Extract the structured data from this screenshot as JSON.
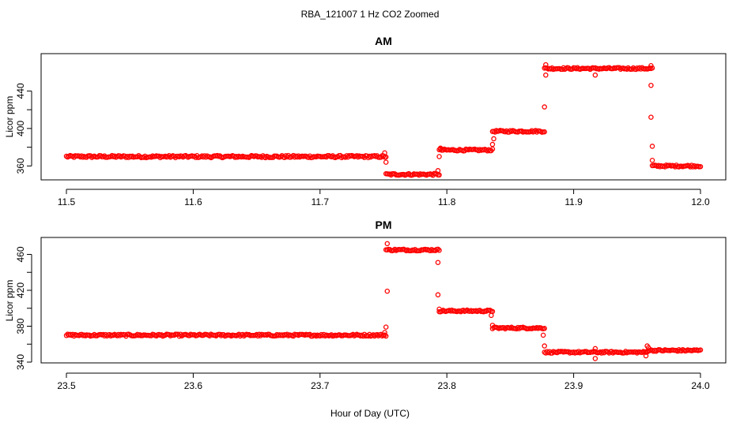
{
  "figure": {
    "title": "RBA_121007  1 Hz CO2 Zoomed",
    "xlabel": "Hour of Day (UTC)"
  },
  "chart_data": [
    {
      "type": "scatter",
      "title": "AM",
      "ylabel": "Licor ppm",
      "xlabel": "Hour of Day (UTC)",
      "xlim": [
        11.5,
        12.0
      ],
      "ylim": [
        346,
        479
      ],
      "xticks": [
        "11.5",
        "11.6",
        "11.7",
        "11.8",
        "11.9",
        "12.0"
      ],
      "yticks": [
        "360",
        "400",
        "440"
      ],
      "marker": "open-circle",
      "color": "#ff0000",
      "segments": [
        {
          "x_start": 11.5,
          "x_end": 11.752,
          "y": 370,
          "noise": 1.2
        },
        {
          "x_start": 11.752,
          "x_end": 11.794,
          "y": 351,
          "noise": 1.0
        },
        {
          "x_start": 11.794,
          "x_end": 11.836,
          "y": 377,
          "noise": 1.0
        },
        {
          "x_start": 11.836,
          "x_end": 11.877,
          "y": 397,
          "noise": 1.0
        },
        {
          "x_start": 11.877,
          "x_end": 11.962,
          "y": 464,
          "noise": 1.0
        },
        {
          "x_start": 11.962,
          "x_end": 12.0,
          "y": 360,
          "noise": 1.0
        }
      ],
      "points": [
        {
          "x": 11.751,
          "y": 374
        },
        {
          "x": 11.752,
          "y": 364
        },
        {
          "x": 11.793,
          "y": 355
        },
        {
          "x": 11.794,
          "y": 370
        },
        {
          "x": 11.795,
          "y": 379
        },
        {
          "x": 11.836,
          "y": 383
        },
        {
          "x": 11.837,
          "y": 389
        },
        {
          "x": 11.877,
          "y": 423
        },
        {
          "x": 11.878,
          "y": 457
        },
        {
          "x": 11.878,
          "y": 468
        },
        {
          "x": 11.917,
          "y": 457
        },
        {
          "x": 11.961,
          "y": 446
        },
        {
          "x": 11.961,
          "y": 412
        },
        {
          "x": 11.962,
          "y": 381
        },
        {
          "x": 11.962,
          "y": 366
        },
        {
          "x": 11.961,
          "y": 467
        }
      ]
    },
    {
      "type": "scatter",
      "title": "PM",
      "ylabel": "Licor ppm",
      "xlabel": "Hour of Day (UTC)",
      "xlim": [
        23.5,
        24.0
      ],
      "ylim": [
        340,
        478
      ],
      "xticks": [
        "23.5",
        "23.6",
        "23.7",
        "23.8",
        "23.9",
        "24.0"
      ],
      "yticks": [
        "340",
        "380",
        "420",
        "460"
      ],
      "marker": "open-circle",
      "color": "#ff0000",
      "segments": [
        {
          "x_start": 23.5,
          "x_end": 23.752,
          "y": 370,
          "noise": 1.1
        },
        {
          "x_start": 23.752,
          "x_end": 23.794,
          "y": 465,
          "noise": 1.0
        },
        {
          "x_start": 23.794,
          "x_end": 23.836,
          "y": 397,
          "noise": 1.0
        },
        {
          "x_start": 23.836,
          "x_end": 23.877,
          "y": 378,
          "noise": 1.0
        },
        {
          "x_start": 23.877,
          "x_end": 23.958,
          "y": 351,
          "noise": 1.0
        },
        {
          "x_start": 23.958,
          "x_end": 24.0,
          "y": 353,
          "noise": 1.0
        }
      ],
      "points": [
        {
          "x": 23.751,
          "y": 373
        },
        {
          "x": 23.752,
          "y": 379
        },
        {
          "x": 23.753,
          "y": 419
        },
        {
          "x": 23.753,
          "y": 472
        },
        {
          "x": 23.793,
          "y": 451
        },
        {
          "x": 23.793,
          "y": 415
        },
        {
          "x": 23.794,
          "y": 399
        },
        {
          "x": 23.835,
          "y": 392
        },
        {
          "x": 23.836,
          "y": 381
        },
        {
          "x": 23.876,
          "y": 370
        },
        {
          "x": 23.877,
          "y": 358
        },
        {
          "x": 23.917,
          "y": 355
        },
        {
          "x": 23.917,
          "y": 344
        },
        {
          "x": 23.957,
          "y": 347
        },
        {
          "x": 23.958,
          "y": 358
        },
        {
          "x": 23.959,
          "y": 356
        }
      ]
    }
  ]
}
